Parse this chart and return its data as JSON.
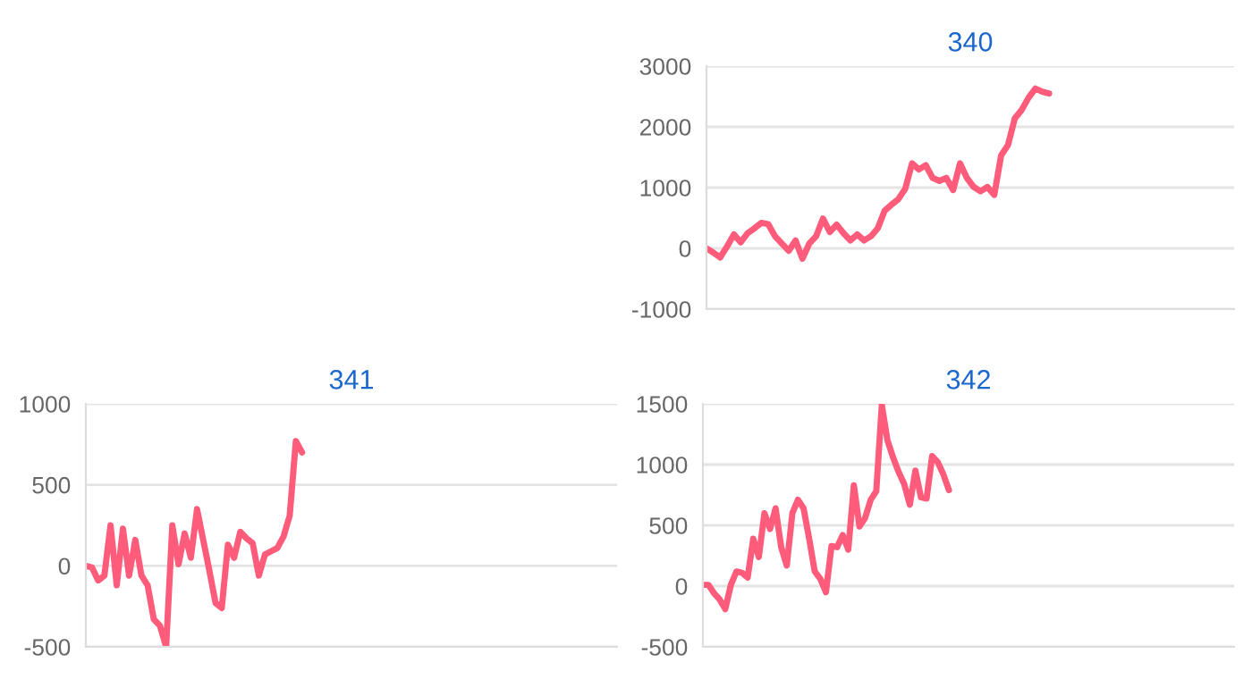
{
  "chart_data": [
    {
      "type": "line",
      "title": "340",
      "categories": [
        null,
        null,
        null,
        null,
        null,
        null,
        null,
        null,
        null,
        null,
        null,
        null,
        null,
        null,
        null,
        null,
        null,
        null,
        null,
        null,
        null,
        null,
        null,
        null,
        null,
        null,
        null,
        null,
        null,
        null,
        null,
        null,
        null,
        null,
        null,
        null,
        null,
        null,
        null,
        null,
        null,
        null,
        null,
        null,
        null,
        null,
        null,
        null,
        null,
        null,
        null,
        null,
        null,
        null,
        null,
        null,
        null,
        null,
        null,
        null,
        null,
        null,
        null,
        null,
        null,
        null,
        null,
        null,
        null,
        null,
        null,
        null,
        null,
        null,
        null,
        null,
        null,
        null
      ],
      "series": [
        {
          "color": "#ff5b7a",
          "values": [
            0,
            -70,
            -150,
            30,
            230,
            100,
            250,
            330,
            420,
            400,
            200,
            80,
            -40,
            130,
            -170,
            80,
            200,
            490,
            270,
            390,
            250,
            130,
            230,
            130,
            200,
            330,
            620,
            720,
            810,
            980,
            1400,
            1300,
            1370,
            1160,
            1110,
            1160,
            960,
            1400,
            1160,
            1010,
            940,
            1010,
            880,
            1530,
            1700,
            2140,
            2280,
            2480,
            2630,
            2580,
            2550,
            null,
            null,
            null,
            null,
            null,
            null,
            null,
            null,
            null,
            null,
            null,
            null,
            null,
            null,
            null,
            null,
            null,
            null,
            null,
            null,
            null,
            null,
            null,
            null,
            null,
            null,
            null
          ]
        }
      ],
      "ylim": [
        -1000,
        3000
      ],
      "yticks": [
        -1000,
        0,
        1000,
        2000,
        3000
      ],
      "grid": "y",
      "tick_labels": "y",
      "marker": "none",
      "line_style": "solid"
    },
    {
      "type": "line",
      "title": "341",
      "categories": [
        null,
        null,
        null,
        null,
        null,
        null,
        null,
        null,
        null,
        null,
        null,
        null,
        null,
        null,
        null,
        null,
        null,
        null,
        null,
        null,
        null,
        null,
        null,
        null,
        null,
        null,
        null,
        null,
        null,
        null,
        null,
        null,
        null,
        null,
        null,
        null,
        null,
        null,
        null,
        null,
        null,
        null,
        null,
        null,
        null,
        null,
        null,
        null,
        null,
        null,
        null,
        null,
        null,
        null,
        null,
        null,
        null,
        null,
        null,
        null,
        null,
        null,
        null,
        null,
        null,
        null,
        null,
        null,
        null,
        null,
        null,
        null,
        null,
        null,
        null,
        null,
        null,
        null,
        null,
        null,
        null,
        null,
        null,
        null,
        null,
        null,
        null
      ],
      "series": [
        {
          "color": "#ff5b7a",
          "values": [
            0,
            -10,
            -90,
            -60,
            250,
            -120,
            230,
            -60,
            160,
            -60,
            -120,
            -330,
            -370,
            -500,
            250,
            10,
            200,
            50,
            350,
            160,
            -30,
            -230,
            -260,
            130,
            50,
            210,
            170,
            140,
            -60,
            70,
            90,
            110,
            180,
            310,
            770,
            700,
            null,
            null,
            null,
            null,
            null,
            null,
            null,
            null,
            null,
            null,
            null,
            null,
            null,
            null,
            null,
            null,
            null,
            null,
            null,
            null,
            null,
            null,
            null,
            null,
            null,
            null,
            null,
            null,
            null,
            null,
            null,
            null,
            null,
            null,
            null,
            null,
            null,
            null,
            null,
            null,
            null,
            null,
            null,
            null,
            null,
            null,
            null,
            null,
            null,
            null,
            null
          ]
        }
      ],
      "ylim": [
        -500,
        1000
      ],
      "yticks": [
        -500,
        0,
        500,
        1000
      ],
      "grid": "y",
      "tick_labels": "y",
      "marker": "none",
      "line_style": "solid"
    },
    {
      "type": "line",
      "title": "342",
      "categories": [
        null,
        null,
        null,
        null,
        null,
        null,
        null,
        null,
        null,
        null,
        null,
        null,
        null,
        null,
        null,
        null,
        null,
        null,
        null,
        null,
        null,
        null,
        null,
        null,
        null,
        null,
        null,
        null,
        null,
        null,
        null,
        null,
        null,
        null,
        null,
        null,
        null,
        null,
        null,
        null,
        null,
        null,
        null,
        null,
        null,
        null,
        null,
        null,
        null,
        null,
        null,
        null,
        null,
        null,
        null,
        null,
        null,
        null,
        null,
        null,
        null,
        null,
        null,
        null,
        null,
        null,
        null,
        null,
        null,
        null,
        null,
        null,
        null,
        null,
        null,
        null,
        null,
        null,
        null,
        null,
        null,
        null,
        null,
        null,
        null,
        null,
        null,
        null,
        null,
        null,
        null,
        null,
        null,
        null,
        null,
        null
      ],
      "series": [
        {
          "color": "#ff5b7a",
          "values": [
            10,
            10,
            -60,
            -110,
            -190,
            10,
            120,
            110,
            70,
            390,
            240,
            600,
            470,
            640,
            320,
            170,
            600,
            710,
            640,
            390,
            120,
            60,
            -50,
            330,
            320,
            420,
            300,
            830,
            490,
            560,
            710,
            780,
            1490,
            1200,
            1060,
            940,
            840,
            670,
            950,
            730,
            720,
            1070,
            1020,
            920,
            790,
            null,
            null,
            null,
            null,
            null,
            null,
            null,
            null,
            null,
            null,
            null,
            null,
            null,
            null,
            null,
            null,
            null,
            null,
            null,
            null,
            null,
            null,
            null,
            null,
            null,
            null,
            null,
            null,
            null,
            null,
            null,
            null,
            null,
            null,
            null,
            null,
            null,
            null,
            null,
            null,
            null,
            null,
            null,
            null,
            null,
            null,
            null,
            null,
            null,
            null,
            null
          ]
        }
      ],
      "ylim": [
        -500,
        1500
      ],
      "yticks": [
        -500,
        0,
        500,
        1000,
        1500
      ],
      "grid": "y",
      "tick_labels": "y",
      "marker": "none",
      "line_style": "solid"
    }
  ]
}
